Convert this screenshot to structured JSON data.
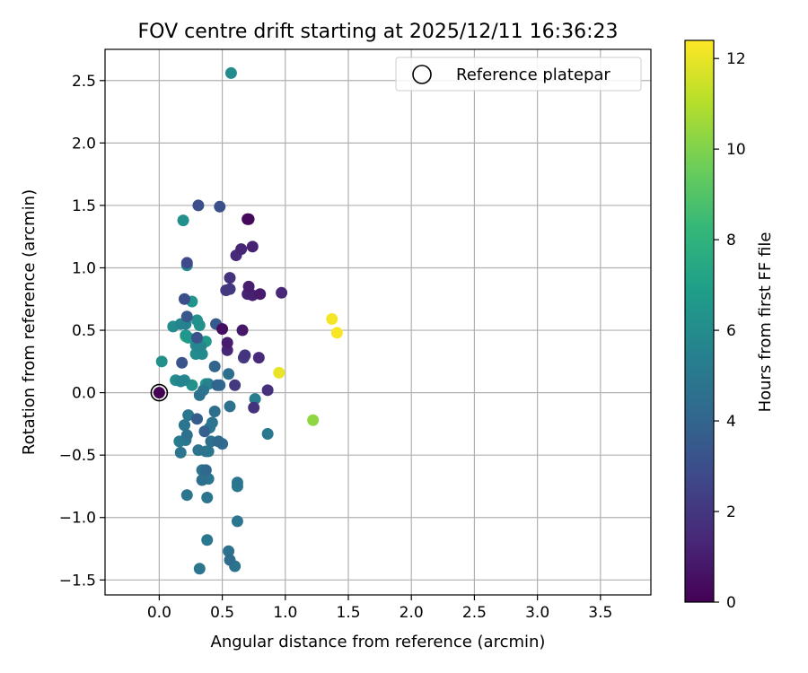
{
  "chart_data": {
    "type": "scatter",
    "title": "FOV centre drift starting at 2025/12/11 16:36:23",
    "xlabel": "Angular distance from reference (arcmin)",
    "ylabel": "Rotation from reference (arcmin)",
    "xlim": [
      -0.43,
      3.9
    ],
    "ylim": [
      -1.62,
      2.75
    ],
    "x_ticks": [
      0.0,
      0.5,
      1.0,
      1.5,
      2.0,
      2.5,
      3.0,
      3.5
    ],
    "x_tick_labels": [
      "0.0",
      "0.5",
      "1.0",
      "1.5",
      "2.0",
      "2.5",
      "3.0",
      "3.5"
    ],
    "y_ticks": [
      -1.5,
      -1.0,
      -0.5,
      0.0,
      0.5,
      1.0,
      1.5,
      2.0,
      2.5
    ],
    "y_tick_labels": [
      "−1.5",
      "−1.0",
      "−0.5",
      "0.0",
      "0.5",
      "1.0",
      "1.5",
      "2.0",
      "2.5"
    ],
    "grid": true,
    "legend": {
      "label": "Reference platepar",
      "position": "top-right"
    },
    "reference_point": {
      "x": 0.0,
      "y": 0.0
    },
    "colorbar": {
      "label": "Hours from first FF file",
      "range": [
        0,
        12.4
      ],
      "ticks": [
        0,
        2,
        4,
        6,
        8,
        10,
        12
      ],
      "tick_labels": [
        "0",
        "2",
        "4",
        "6",
        "8",
        "10",
        "12"
      ],
      "colormap": "viridis"
    },
    "colormap_stops": [
      "#440154",
      "#482878",
      "#3e4989",
      "#31688e",
      "#26828e",
      "#1f9e89",
      "#35b779",
      "#6ece58",
      "#b5de2b",
      "#fde725"
    ],
    "points": [
      {
        "x": 0.0,
        "y": 0.0,
        "h": 0.0
      },
      {
        "x": 0.71,
        "y": 1.39,
        "h": 0.4
      },
      {
        "x": 0.7,
        "y": 1.39,
        "h": 0.3
      },
      {
        "x": 0.74,
        "y": 1.17,
        "h": 1.2
      },
      {
        "x": 0.65,
        "y": 1.15,
        "h": 1.3
      },
      {
        "x": 0.61,
        "y": 1.1,
        "h": 1.5
      },
      {
        "x": 0.56,
        "y": 0.92,
        "h": 1.8
      },
      {
        "x": 0.56,
        "y": 0.83,
        "h": 2.0
      },
      {
        "x": 0.53,
        "y": 0.82,
        "h": 2.1
      },
      {
        "x": 0.71,
        "y": 0.85,
        "h": 1.0
      },
      {
        "x": 0.74,
        "y": 0.78,
        "h": 1.1
      },
      {
        "x": 0.7,
        "y": 0.79,
        "h": 1.2
      },
      {
        "x": 0.8,
        "y": 0.79,
        "h": 0.9
      },
      {
        "x": 0.97,
        "y": 0.8,
        "h": 1.4
      },
      {
        "x": 0.66,
        "y": 0.5,
        "h": 0.8
      },
      {
        "x": 0.5,
        "y": 0.51,
        "h": 0.5
      },
      {
        "x": 0.54,
        "y": 0.4,
        "h": 1.0
      },
      {
        "x": 0.54,
        "y": 0.34,
        "h": 1.3
      },
      {
        "x": 0.68,
        "y": 0.3,
        "h": 1.9
      },
      {
        "x": 0.67,
        "y": 0.28,
        "h": 2.2
      },
      {
        "x": 0.79,
        "y": 0.28,
        "h": 1.5
      },
      {
        "x": 0.86,
        "y": 0.02,
        "h": 1.7
      },
      {
        "x": 0.75,
        "y": -0.12,
        "h": 1.8
      },
      {
        "x": 0.6,
        "y": 0.06,
        "h": 2.1
      },
      {
        "x": 0.31,
        "y": 1.5,
        "h": 3.0
      },
      {
        "x": 0.48,
        "y": 1.49,
        "h": 3.0
      },
      {
        "x": 0.22,
        "y": 1.04,
        "h": 2.8
      },
      {
        "x": 0.2,
        "y": 0.75,
        "h": 3.0
      },
      {
        "x": 0.45,
        "y": 0.55,
        "h": 3.5
      },
      {
        "x": 0.22,
        "y": 0.61,
        "h": 3.4
      },
      {
        "x": 0.3,
        "y": 0.44,
        "h": 3.2
      },
      {
        "x": 0.18,
        "y": 0.24,
        "h": 3.3
      },
      {
        "x": 0.44,
        "y": 0.21,
        "h": 4.0
      },
      {
        "x": 0.55,
        "y": 0.15,
        "h": 4.5
      },
      {
        "x": 0.46,
        "y": 0.06,
        "h": 4.0
      },
      {
        "x": 0.48,
        "y": 0.06,
        "h": 4.2
      },
      {
        "x": 0.32,
        "y": -0.02,
        "h": 4.6
      },
      {
        "x": 0.35,
        "y": 0.02,
        "h": 4.8
      },
      {
        "x": 0.56,
        "y": -0.11,
        "h": 4.6
      },
      {
        "x": 0.3,
        "y": -0.21,
        "h": 3.6
      },
      {
        "x": 0.36,
        "y": -0.31,
        "h": 3.8
      },
      {
        "x": 0.44,
        "y": -0.15,
        "h": 4.5
      },
      {
        "x": 0.42,
        "y": -0.24,
        "h": 4.8
      },
      {
        "x": 0.4,
        "y": -0.28,
        "h": 5.0
      },
      {
        "x": 0.22,
        "y": -0.34,
        "h": 4.6
      },
      {
        "x": 0.2,
        "y": -0.26,
        "h": 4.8
      },
      {
        "x": 0.23,
        "y": -0.18,
        "h": 5.0
      },
      {
        "x": 0.16,
        "y": -0.39,
        "h": 5.2
      },
      {
        "x": 0.21,
        "y": -0.38,
        "h": 5.0
      },
      {
        "x": 0.41,
        "y": -0.39,
        "h": 4.5
      },
      {
        "x": 0.47,
        "y": -0.39,
        "h": 4.2
      },
      {
        "x": 0.5,
        "y": -0.41,
        "h": 4.4
      },
      {
        "x": 0.31,
        "y": -0.46,
        "h": 4.7
      },
      {
        "x": 0.37,
        "y": -0.47,
        "h": 4.8
      },
      {
        "x": 0.39,
        "y": -0.47,
        "h": 5.0
      },
      {
        "x": 0.17,
        "y": -0.48,
        "h": 4.9
      },
      {
        "x": 0.34,
        "y": -0.62,
        "h": 4.8
      },
      {
        "x": 0.37,
        "y": -0.62,
        "h": 4.2
      },
      {
        "x": 0.34,
        "y": -0.7,
        "h": 4.5
      },
      {
        "x": 0.39,
        "y": -0.69,
        "h": 4.8
      },
      {
        "x": 0.62,
        "y": -0.72,
        "h": 4.9
      },
      {
        "x": 0.62,
        "y": -0.75,
        "h": 5.0
      },
      {
        "x": 0.22,
        "y": -0.82,
        "h": 4.9
      },
      {
        "x": 0.38,
        "y": -0.84,
        "h": 4.8
      },
      {
        "x": 0.62,
        "y": -1.03,
        "h": 4.9
      },
      {
        "x": 0.38,
        "y": -1.18,
        "h": 5.0
      },
      {
        "x": 0.55,
        "y": -1.27,
        "h": 4.6
      },
      {
        "x": 0.56,
        "y": -1.34,
        "h": 4.4
      },
      {
        "x": 0.6,
        "y": -1.39,
        "h": 4.7
      },
      {
        "x": 0.32,
        "y": -1.41,
        "h": 4.9
      },
      {
        "x": 0.86,
        "y": -0.33,
        "h": 5.0
      },
      {
        "x": 0.76,
        "y": -0.05,
        "h": 5.2
      },
      {
        "x": 0.57,
        "y": 2.56,
        "h": 6.0
      },
      {
        "x": 0.19,
        "y": 1.38,
        "h": 6.2
      },
      {
        "x": 0.22,
        "y": 1.02,
        "h": 5.8
      },
      {
        "x": 0.26,
        "y": 0.73,
        "h": 6.4
      },
      {
        "x": 0.21,
        "y": 0.55,
        "h": 5.5
      },
      {
        "x": 0.17,
        "y": 0.55,
        "h": 5.6
      },
      {
        "x": 0.11,
        "y": 0.53,
        "h": 6.0
      },
      {
        "x": 0.3,
        "y": 0.58,
        "h": 6.2
      },
      {
        "x": 0.32,
        "y": 0.54,
        "h": 6.3
      },
      {
        "x": 0.21,
        "y": 0.46,
        "h": 6.5
      },
      {
        "x": 0.23,
        "y": 0.44,
        "h": 6.8
      },
      {
        "x": 0.37,
        "y": 0.41,
        "h": 6.6
      },
      {
        "x": 0.29,
        "y": 0.38,
        "h": 5.8
      },
      {
        "x": 0.33,
        "y": 0.37,
        "h": 5.7
      },
      {
        "x": 0.29,
        "y": 0.31,
        "h": 6.0
      },
      {
        "x": 0.34,
        "y": 0.31,
        "h": 5.9
      },
      {
        "x": 0.02,
        "y": 0.25,
        "h": 6.2
      },
      {
        "x": 0.13,
        "y": 0.1,
        "h": 6.0
      },
      {
        "x": 0.17,
        "y": 0.09,
        "h": 5.6
      },
      {
        "x": 0.2,
        "y": 0.1,
        "h": 5.7
      },
      {
        "x": 0.26,
        "y": 0.06,
        "h": 6.3
      },
      {
        "x": 0.37,
        "y": 0.07,
        "h": 6.5
      },
      {
        "x": 0.39,
        "y": 0.07,
        "h": 5.5
      },
      {
        "x": 0.2,
        "y": -0.26,
        "h": 6.4
      },
      {
        "x": 0.22,
        "y": 0.45,
        "h": 8.6
      },
      {
        "x": 0.21,
        "y": 0.45,
        "h": 9.0
      },
      {
        "x": 1.22,
        "y": -0.22,
        "h": 10.3
      },
      {
        "x": 0.95,
        "y": 0.16,
        "h": 12.0
      },
      {
        "x": 1.37,
        "y": 0.59,
        "h": 12.2
      },
      {
        "x": 1.41,
        "y": 0.48,
        "h": 12.3
      }
    ]
  }
}
